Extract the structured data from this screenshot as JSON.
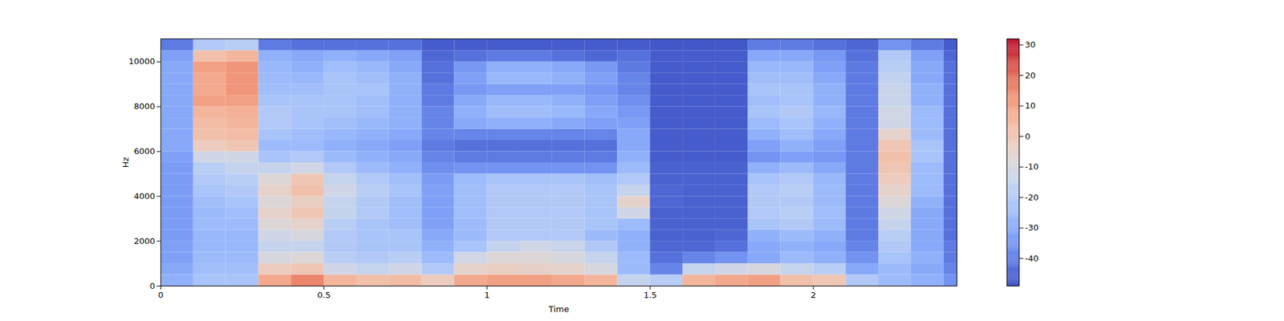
{
  "chart_data": {
    "type": "heatmap",
    "x_label": "Time",
    "y_label": "Hz",
    "xlim": [
      0,
      2.44
    ],
    "ylim": [
      0,
      11025
    ],
    "xticks": [
      0,
      0.5,
      1,
      1.5,
      2
    ],
    "yticks": [
      0,
      2000,
      4000,
      6000,
      8000,
      10000
    ],
    "x_edges": [
      0,
      0.1,
      0.2,
      0.3,
      0.4,
      0.5,
      0.6,
      0.7,
      0.8,
      0.9,
      1.0,
      1.1,
      1.2,
      1.3,
      1.4,
      1.5,
      1.6,
      1.7,
      1.8,
      1.9,
      2.0,
      2.1,
      2.2,
      2.3,
      2.4,
      2.44
    ],
    "y_edges": [
      0,
      500,
      1000,
      1500,
      2000,
      2500,
      3000,
      3500,
      4000,
      4500,
      5000,
      5500,
      6000,
      6500,
      7000,
      7500,
      8000,
      8500,
      9000,
      9500,
      10000,
      10500,
      11025
    ],
    "cells": [
      [
        -28,
        -22,
        -22,
        8,
        15,
        5,
        2,
        3,
        -2,
        8,
        10,
        10,
        8,
        5,
        -15,
        -18,
        5,
        8,
        10,
        2,
        0,
        -20,
        -25,
        -28,
        -35
      ],
      [
        -30,
        -24,
        -24,
        -2,
        0,
        -12,
        -15,
        -12,
        -20,
        -5,
        -3,
        -4,
        -5,
        -10,
        -25,
        -38,
        -15,
        -12,
        -10,
        -15,
        -18,
        -30,
        -25,
        -30,
        -38
      ],
      [
        -32,
        -25,
        -25,
        -10,
        -8,
        -18,
        -20,
        -18,
        -25,
        -12,
        -8,
        -8,
        -10,
        -15,
        -25,
        -42,
        -38,
        -35,
        -30,
        -25,
        -28,
        -35,
        -22,
        -28,
        -40
      ],
      [
        -32,
        -26,
        -26,
        -15,
        -15,
        -20,
        -22,
        -22,
        -28,
        -22,
        -15,
        -12,
        -14,
        -20,
        -28,
        -44,
        -44,
        -42,
        -30,
        -28,
        -30,
        -38,
        -20,
        -30,
        -40
      ],
      [
        -33,
        -26,
        -26,
        -12,
        -10,
        -20,
        -22,
        -22,
        -30,
        -25,
        -20,
        -20,
        -20,
        -25,
        -28,
        -45,
        -45,
        -44,
        -28,
        -25,
        -28,
        -40,
        -18,
        -30,
        -42
      ],
      [
        -33,
        -25,
        -25,
        -8,
        -5,
        -18,
        -22,
        -24,
        -32,
        -25,
        -20,
        -20,
        -20,
        -22,
        -25,
        -45,
        -45,
        -45,
        -22,
        -20,
        -25,
        -40,
        -15,
        -30,
        -42
      ],
      [
        -33,
        -25,
        -24,
        -5,
        0,
        -15,
        -20,
        -24,
        -32,
        -24,
        -20,
        -20,
        -20,
        -22,
        -12,
        -45,
        -45,
        -45,
        -20,
        -18,
        -24,
        -40,
        -12,
        -30,
        -42
      ],
      [
        -33,
        -24,
        -22,
        -8,
        -3,
        -15,
        -20,
        -24,
        -32,
        -24,
        -20,
        -20,
        -20,
        -22,
        -5,
        -44,
        -45,
        -45,
        -20,
        -20,
        -25,
        -40,
        -8,
        -28,
        -42
      ],
      [
        -33,
        -22,
        -20,
        -5,
        2,
        -12,
        -18,
        -22,
        -32,
        -24,
        -20,
        -20,
        -20,
        -22,
        -15,
        -44,
        -45,
        -45,
        -20,
        -18,
        -25,
        -40,
        -5,
        -25,
        -42
      ],
      [
        -33,
        -20,
        -18,
        -8,
        0,
        -15,
        -20,
        -24,
        -33,
        -25,
        -22,
        -22,
        -22,
        -24,
        -20,
        -45,
        -45,
        -45,
        -22,
        -20,
        -26,
        -40,
        -2,
        -25,
        -42
      ],
      [
        -33,
        -18,
        -15,
        -15,
        -12,
        -20,
        -25,
        -28,
        -36,
        -35,
        -35,
        -35,
        -35,
        -35,
        -25,
        -45,
        -45,
        -45,
        -28,
        -25,
        -30,
        -40,
        0,
        -25,
        -42
      ],
      [
        -32,
        -12,
        -12,
        -22,
        -20,
        -25,
        -28,
        -30,
        -38,
        -40,
        -40,
        -40,
        -40,
        -40,
        -28,
        -46,
        -46,
        -46,
        -35,
        -32,
        -34,
        -40,
        2,
        -22,
        -42
      ],
      [
        -30,
        -2,
        0,
        -25,
        -25,
        -28,
        -30,
        -32,
        -40,
        -42,
        -42,
        -42,
        -42,
        -42,
        -30,
        -46,
        -46,
        -46,
        -32,
        -28,
        -32,
        -40,
        0,
        -22,
        -42
      ],
      [
        -30,
        2,
        3,
        -22,
        -24,
        -26,
        -28,
        -30,
        -38,
        -38,
        -38,
        -38,
        -38,
        -38,
        -30,
        -46,
        -46,
        -46,
        -28,
        -24,
        -30,
        -40,
        -5,
        -25,
        -42
      ],
      [
        -30,
        3,
        5,
        -20,
        -22,
        -24,
        -26,
        -28,
        -38,
        -30,
        -28,
        -28,
        -30,
        -32,
        -32,
        -46,
        -46,
        -46,
        -25,
        -22,
        -28,
        -40,
        -12,
        -25,
        -42
      ],
      [
        -30,
        5,
        6,
        -20,
        -22,
        -22,
        -24,
        -28,
        -38,
        -28,
        -24,
        -24,
        -26,
        -30,
        -34,
        -46,
        -46,
        -46,
        -22,
        -20,
        -26,
        -40,
        -12,
        -25,
        -42
      ],
      [
        -30,
        10,
        10,
        -22,
        -22,
        -22,
        -24,
        -28,
        -40,
        -30,
        -26,
        -26,
        -28,
        -32,
        -36,
        -46,
        -46,
        -46,
        -24,
        -22,
        -28,
        -40,
        -14,
        -28,
        -42
      ],
      [
        -30,
        8,
        12,
        -24,
        -24,
        -22,
        -22,
        -28,
        -40,
        -34,
        -32,
        -32,
        -32,
        -34,
        -38,
        -46,
        -46,
        -46,
        -22,
        -22,
        -28,
        -40,
        -14,
        -28,
        -42
      ],
      [
        -30,
        8,
        12,
        -25,
        -26,
        -22,
        -24,
        -28,
        -42,
        -32,
        -26,
        -26,
        -28,
        -32,
        -38,
        -46,
        -46,
        -46,
        -24,
        -24,
        -30,
        -40,
        -16,
        -30,
        -42
      ],
      [
        -30,
        10,
        12,
        -26,
        -28,
        -24,
        -26,
        -30,
        -42,
        -34,
        -28,
        -28,
        -30,
        -34,
        -40,
        -46,
        -46,
        -46,
        -26,
        -26,
        -32,
        -40,
        -18,
        -30,
        -42
      ],
      [
        -32,
        2,
        5,
        -28,
        -30,
        -28,
        -30,
        -32,
        -44,
        -42,
        -40,
        -40,
        -42,
        -44,
        -42,
        -46,
        -46,
        -46,
        -30,
        -30,
        -34,
        -42,
        -20,
        -32,
        -44
      ],
      [
        -40,
        -20,
        -18,
        -40,
        -42,
        -42,
        -42,
        -42,
        -46,
        -46,
        -46,
        -46,
        -46,
        -46,
        -46,
        -47,
        -47,
        -47,
        -40,
        -40,
        -42,
        -44,
        -35,
        -40,
        -46
      ]
    ],
    "colorbar": {
      "range": [
        -49,
        32
      ],
      "ticks": [
        -40,
        -30,
        -20,
        -10,
        0,
        10,
        20,
        30
      ]
    }
  }
}
